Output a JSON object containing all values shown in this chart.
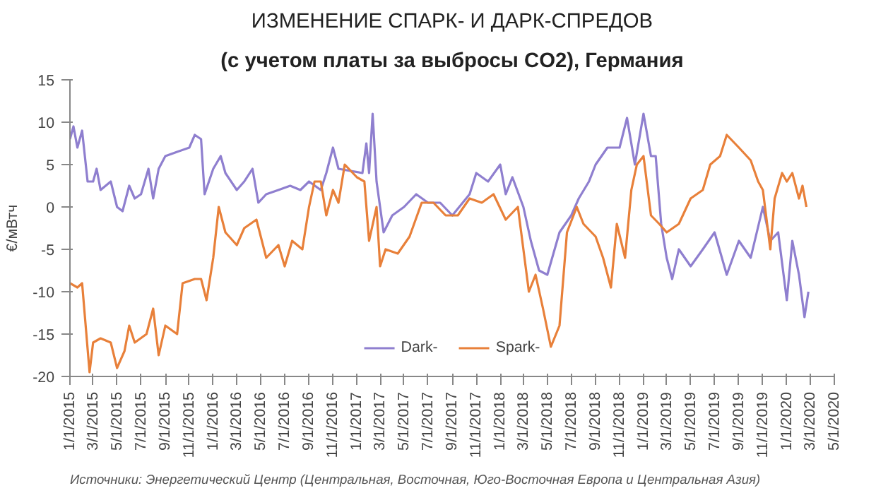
{
  "chart_data": {
    "type": "line",
    "title": "ИЗМЕНЕНИЕ СПАРК- И ДАРК-СПРЕДОВ",
    "subtitle": "(с учетом платы за выбросы CO2), Германия",
    "ylabel": "€/мВтч",
    "annotations": [
      "Источники: Энергетический Центр (Центральная, Восточная, Юго-Восточная Европа и Центральная Азия)"
    ],
    "xlim": [
      "2015-01-01",
      "2020-05-01"
    ],
    "xticks": [
      {
        "value": "2015-01-01",
        "label": "1/1/2015"
      },
      {
        "value": "2015-03-01",
        "label": "3/1/2015"
      },
      {
        "value": "2015-05-01",
        "label": "5/1/2015"
      },
      {
        "value": "2015-07-01",
        "label": "7/1/2015"
      },
      {
        "value": "2015-09-01",
        "label": "9/1/2015"
      },
      {
        "value": "2015-11-01",
        "label": "11/1/2015"
      },
      {
        "value": "2016-01-01",
        "label": "1/1/2016"
      },
      {
        "value": "2016-03-01",
        "label": "3/1/2016"
      },
      {
        "value": "2016-05-01",
        "label": "5/1/2016"
      },
      {
        "value": "2016-07-01",
        "label": "7/1/2016"
      },
      {
        "value": "2016-09-01",
        "label": "9/1/2016"
      },
      {
        "value": "2016-11-01",
        "label": "11/1/2016"
      },
      {
        "value": "2017-01-01",
        "label": "1/1/2017"
      },
      {
        "value": "2017-03-01",
        "label": "3/1/2017"
      },
      {
        "value": "2017-05-01",
        "label": "5/1/2017"
      },
      {
        "value": "2017-07-01",
        "label": "7/1/2017"
      },
      {
        "value": "2017-09-01",
        "label": "9/1/2017"
      },
      {
        "value": "2017-11-01",
        "label": "11/1/2017"
      },
      {
        "value": "2018-01-01",
        "label": "1/1/2018"
      },
      {
        "value": "2018-03-01",
        "label": "3/1/2018"
      },
      {
        "value": "2018-05-01",
        "label": "5/1/2018"
      },
      {
        "value": "2018-07-01",
        "label": "7/1/2018"
      },
      {
        "value": "2018-09-01",
        "label": "9/1/2018"
      },
      {
        "value": "2018-11-01",
        "label": "11/1/2018"
      },
      {
        "value": "2019-01-01",
        "label": "1/1/2019"
      },
      {
        "value": "2019-03-01",
        "label": "3/1/2019"
      },
      {
        "value": "2019-05-01",
        "label": "5/1/2019"
      },
      {
        "value": "2019-07-01",
        "label": "7/1/2019"
      },
      {
        "value": "2019-09-01",
        "label": "9/1/2019"
      },
      {
        "value": "2019-11-01",
        "label": "11/1/2019"
      },
      {
        "value": "2020-01-01",
        "label": "1/1/2020"
      },
      {
        "value": "2020-03-01",
        "label": "3/1/2020"
      },
      {
        "value": "2020-05-01",
        "label": "5/1/2020"
      }
    ],
    "ylim": [
      -20,
      15
    ],
    "yticks": [
      -20,
      -15,
      -10,
      -5,
      0,
      5,
      10,
      15
    ],
    "grid": false,
    "legend": "bottom",
    "line_style": "solid",
    "marker": "none",
    "series": [
      {
        "name": "Dark-",
        "color": "#8f7fcf",
        "x": [
          "2015-01-01",
          "2015-01-10",
          "2015-01-20",
          "2015-02-01",
          "2015-02-15",
          "2015-03-01",
          "2015-03-10",
          "2015-03-20",
          "2015-04-15",
          "2015-05-01",
          "2015-05-15",
          "2015-06-01",
          "2015-06-15",
          "2015-07-01",
          "2015-07-20",
          "2015-08-01",
          "2015-08-15",
          "2015-09-01",
          "2015-10-01",
          "2015-11-01",
          "2015-11-15",
          "2015-12-01",
          "2015-12-10",
          "2016-01-01",
          "2016-01-20",
          "2016-02-01",
          "2016-03-01",
          "2016-03-20",
          "2016-04-10",
          "2016-04-25",
          "2016-05-15",
          "2016-06-15",
          "2016-07-15",
          "2016-08-10",
          "2016-09-01",
          "2016-10-01",
          "2016-10-15",
          "2016-11-01",
          "2016-11-15",
          "2017-01-15",
          "2017-01-25",
          "2017-02-01",
          "2017-02-10",
          "2017-02-20",
          "2017-03-01",
          "2017-03-10",
          "2017-04-01",
          "2017-05-01",
          "2017-06-01",
          "2017-07-01",
          "2017-08-01",
          "2017-09-01",
          "2017-10-15",
          "2017-11-01",
          "2017-12-01",
          "2018-01-01",
          "2018-01-15",
          "2018-02-01",
          "2018-03-01",
          "2018-03-20",
          "2018-04-10",
          "2018-05-01",
          "2018-06-01",
          "2018-07-01",
          "2018-07-20",
          "2018-08-15",
          "2018-09-01",
          "2018-10-01",
          "2018-11-01",
          "2018-11-20",
          "2018-12-10",
          "2019-01-01",
          "2019-01-20",
          "2019-02-01",
          "2019-02-15",
          "2019-03-01",
          "2019-03-15",
          "2019-04-01",
          "2019-05-01",
          "2019-06-01",
          "2019-07-01",
          "2019-08-01",
          "2019-09-01",
          "2019-10-01",
          "2019-11-01",
          "2019-11-20",
          "2019-12-10",
          "2020-01-01",
          "2020-01-15",
          "2020-02-01",
          "2020-02-15",
          "2020-02-25"
        ],
        "values": [
          8,
          9.5,
          7,
          9,
          3,
          3,
          4.5,
          2,
          3,
          0,
          -0.5,
          2.5,
          1,
          1.5,
          4.5,
          1,
          4.5,
          6,
          6.5,
          7,
          8.5,
          8,
          1.5,
          4.5,
          6,
          4,
          2,
          3,
          4.5,
          0.5,
          1.5,
          2,
          2.5,
          2,
          3,
          2,
          4,
          7,
          4.5,
          4,
          7.5,
          4,
          11,
          3,
          0,
          -3,
          -1,
          0,
          1.5,
          0.5,
          0.5,
          -1,
          1.5,
          4,
          3,
          5,
          1.5,
          3.5,
          0,
          -4,
          -7.5,
          -8,
          -3,
          -1,
          1,
          3,
          5,
          7,
          7,
          10.5,
          5,
          11,
          6,
          6,
          -2,
          -6,
          -8.5,
          -5,
          -7,
          -5,
          -3,
          -8,
          -4,
          -6,
          0,
          -4,
          -3,
          -11,
          -4,
          -8,
          -13,
          -10
        ]
      },
      {
        "name": "Spark-",
        "color": "#e8803a",
        "x": [
          "2015-01-01",
          "2015-01-20",
          "2015-02-01",
          "2015-02-20",
          "2015-03-01",
          "2015-03-20",
          "2015-04-15",
          "2015-05-01",
          "2015-05-20",
          "2015-06-01",
          "2015-06-15",
          "2015-07-15",
          "2015-08-01",
          "2015-08-15",
          "2015-09-01",
          "2015-10-01",
          "2015-10-15",
          "2015-11-15",
          "2015-12-01",
          "2015-12-15",
          "2016-01-01",
          "2016-01-15",
          "2016-02-01",
          "2016-03-01",
          "2016-03-20",
          "2016-04-20",
          "2016-05-15",
          "2016-06-15",
          "2016-07-01",
          "2016-07-20",
          "2016-08-15",
          "2016-09-01",
          "2016-09-15",
          "2016-10-01",
          "2016-10-15",
          "2016-11-01",
          "2016-11-15",
          "2016-12-01",
          "2017-01-01",
          "2017-01-20",
          "2017-02-01",
          "2017-02-20",
          "2017-03-01",
          "2017-03-15",
          "2017-04-15",
          "2017-05-15",
          "2017-06-15",
          "2017-07-15",
          "2017-08-15",
          "2017-09-15",
          "2017-10-15",
          "2017-11-15",
          "2017-12-15",
          "2018-01-15",
          "2018-02-15",
          "2018-03-01",
          "2018-03-15",
          "2018-04-01",
          "2018-04-20",
          "2018-05-10",
          "2018-06-01",
          "2018-06-20",
          "2018-07-15",
          "2018-08-01",
          "2018-09-01",
          "2018-09-20",
          "2018-10-10",
          "2018-10-25",
          "2018-11-15",
          "2018-12-01",
          "2018-12-15",
          "2019-01-01",
          "2019-01-20",
          "2019-02-10",
          "2019-03-01",
          "2019-04-01",
          "2019-05-01",
          "2019-06-01",
          "2019-06-20",
          "2019-07-15",
          "2019-08-01",
          "2019-09-01",
          "2019-10-01",
          "2019-10-20",
          "2019-11-01",
          "2019-11-20",
          "2019-12-01",
          "2019-12-20",
          "2020-01-01",
          "2020-01-15",
          "2020-02-01",
          "2020-02-10",
          "2020-02-20"
        ],
        "values": [
          -9,
          -9.5,
          -9,
          -19.5,
          -16,
          -15.5,
          -16,
          -19,
          -17,
          -14,
          -16,
          -15,
          -12,
          -17.5,
          -14,
          -15,
          -9,
          -8.5,
          -8.5,
          -11,
          -6,
          0,
          -3,
          -4.5,
          -2.5,
          -1.5,
          -6,
          -4.5,
          -7,
          -4,
          -5,
          0,
          3,
          3,
          -1,
          2,
          0.5,
          5,
          3.5,
          3,
          -4,
          0,
          -7,
          -5,
          -5.5,
          -3.5,
          0.5,
          0.5,
          -1,
          -1,
          1,
          0.5,
          1.5,
          -1.5,
          0,
          -5,
          -10,
          -8,
          -12,
          -16.5,
          -14,
          -3,
          0,
          -2,
          -3.5,
          -6,
          -9.5,
          -2,
          -6,
          2,
          5,
          6,
          -1,
          -2,
          -3,
          -2,
          1,
          2,
          5,
          6,
          8.5,
          7,
          5.5,
          3,
          2,
          -5,
          1,
          4,
          3,
          4,
          1,
          2.5,
          0
        ]
      }
    ]
  }
}
